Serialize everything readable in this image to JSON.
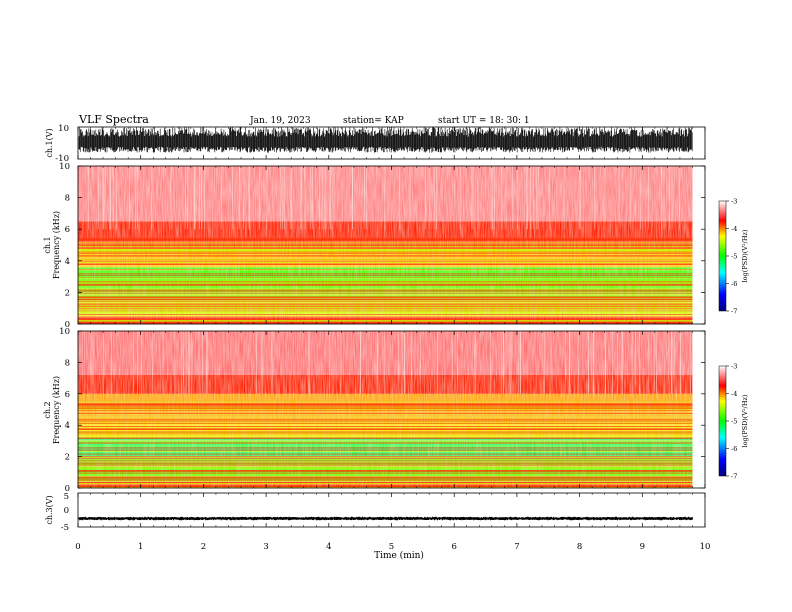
{
  "header": {
    "title": "VLF Spectra",
    "date": "Jan. 19, 2023",
    "station": "station= KAP",
    "start": "start  UT  =   18: 30: 1"
  },
  "colors": {
    "high": "#ff0000",
    "mid": "#ffff00",
    "low": "#00ff00",
    "lower": "#0000ff",
    "bg": "#ffffff"
  },
  "chart_data": [
    {
      "type": "line",
      "name": "ch1-waveform",
      "ylabel": "ch.1(V)",
      "ylim": [
        -10,
        10
      ],
      "yticks": [
        "10",
        "-10"
      ],
      "xlim": [
        0,
        10
      ],
      "signal": {
        "mean": 0,
        "min": -6,
        "max": 10,
        "duration_min": 9.8
      }
    },
    {
      "type": "heatmap",
      "name": "ch1-spectrogram",
      "ylabel": "ch.1\nFrequency (kHz)",
      "ylim": [
        0,
        10
      ],
      "yticks": [
        "0",
        "2",
        "4",
        "6",
        "8",
        "10"
      ],
      "xlim": [
        0,
        10
      ],
      "bands": [
        {
          "from": 0,
          "to": 0.5,
          "color": "#ff2000"
        },
        {
          "from": 0.5,
          "to": 1.5,
          "color": "#d0ff00"
        },
        {
          "from": 1.5,
          "to": 2.6,
          "color": "#60ff00"
        },
        {
          "from": 2.6,
          "to": 3.6,
          "color": "#40ff00"
        },
        {
          "from": 3.6,
          "to": 4.8,
          "color": "#ffc000"
        },
        {
          "from": 4.8,
          "to": 6.5,
          "color": "#ff2000"
        },
        {
          "from": 6.5,
          "to": 10,
          "color": "#ff8080"
        }
      ],
      "colorbar": {
        "label": "log(PSD)(V²/Hz)",
        "ticks": [
          "-3",
          "-4",
          "-5",
          "-6",
          "-7"
        ],
        "range": [
          -7,
          -3
        ]
      }
    },
    {
      "type": "heatmap",
      "name": "ch2-spectrogram",
      "ylabel": "ch.2\nFrequency (kHz)",
      "ylim": [
        0,
        10
      ],
      "yticks": [
        "0",
        "2",
        "4",
        "6",
        "8",
        "10"
      ],
      "xlim": [
        0,
        10
      ],
      "bands": [
        {
          "from": 0,
          "to": 0.4,
          "color": "#ff2000"
        },
        {
          "from": 0.4,
          "to": 1.8,
          "color": "#60ff00"
        },
        {
          "from": 1.8,
          "to": 3.2,
          "color": "#20ff60"
        },
        {
          "from": 3.2,
          "to": 4.2,
          "color": "#ffe000"
        },
        {
          "from": 4.2,
          "to": 6,
          "color": "#ffa000"
        },
        {
          "from": 6,
          "to": 7.2,
          "color": "#ff2000"
        },
        {
          "from": 7.2,
          "to": 10,
          "color": "#ff7070"
        }
      ],
      "colorbar": {
        "label": "log(PSD)(V²/Hz)",
        "ticks": [
          "-3",
          "-4",
          "-5",
          "-6",
          "-7"
        ],
        "range": [
          -7,
          -3
        ]
      }
    },
    {
      "type": "line",
      "name": "ch3-waveform",
      "ylabel": "ch.3(V)",
      "ylim": [
        -5,
        5
      ],
      "yticks": [
        "5",
        "0",
        "-5"
      ],
      "xlim": [
        0,
        10
      ],
      "signal": {
        "mean": -2.5,
        "min": -3,
        "max": -2,
        "duration_min": 9.8
      }
    }
  ],
  "xaxis": {
    "label": "Time (min)",
    "ticks": [
      "0",
      "1",
      "2",
      "3",
      "4",
      "5",
      "6",
      "7",
      "8",
      "9",
      "10"
    ],
    "range": [
      0,
      10
    ]
  }
}
